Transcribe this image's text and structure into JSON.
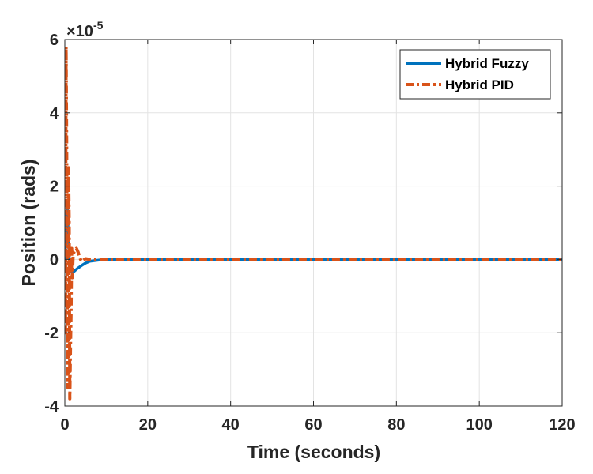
{
  "chart_data": {
    "type": "line",
    "title": "",
    "xlabel": "Time (seconds)",
    "ylabel": "Position (rads)",
    "xlim": [
      0,
      120
    ],
    "ylim": [
      -4,
      6
    ],
    "y_exponent_label": "×10",
    "y_exponent_value": "-5",
    "x_ticks": [
      "0",
      "20",
      "40",
      "60",
      "80",
      "100",
      "120"
    ],
    "y_ticks": [
      "-4",
      "-2",
      "0",
      "2",
      "4",
      "6"
    ],
    "grid": true,
    "legend_position": "top-right",
    "series": [
      {
        "name": "Hybrid Fuzzy",
        "color": "#0072BD",
        "style": "solid",
        "x": [
          0,
          0.2,
          0.4,
          0.6,
          0.8,
          1.0,
          1.2,
          1.5,
          2.0,
          2.5,
          3,
          4,
          5,
          6,
          8,
          10,
          15,
          20,
          40,
          60,
          80,
          100,
          120
        ],
        "y": [
          0,
          0.5,
          1.2,
          1.5,
          0.8,
          0.2,
          -0.2,
          -0.35,
          -0.35,
          -0.3,
          -0.25,
          -0.17,
          -0.1,
          -0.05,
          -0.02,
          0,
          0,
          0,
          0,
          0,
          0,
          0,
          0
        ]
      },
      {
        "name": "Hybrid PID",
        "color": "#D95319",
        "style": "dash-dot",
        "x": [
          0,
          0.15,
          0.3,
          0.45,
          0.6,
          0.75,
          0.9,
          1.05,
          1.2,
          1.35,
          1.5,
          1.65,
          1.8,
          2.0,
          2.2,
          2.5,
          2.8,
          3.2,
          3.6,
          4,
          5,
          6,
          8,
          10,
          20,
          40,
          60,
          80,
          100,
          120
        ],
        "y": [
          0,
          -2.0,
          5.8,
          3.0,
          -1.5,
          -3.5,
          2.5,
          1.0,
          -3.8,
          -2.5,
          -1.5,
          0.3,
          -0.5,
          0.1,
          0.2,
          0.25,
          0.3,
          0.2,
          0.05,
          -0.05,
          0.02,
          0,
          0,
          0,
          0,
          0,
          0,
          0,
          0,
          0
        ]
      }
    ]
  }
}
